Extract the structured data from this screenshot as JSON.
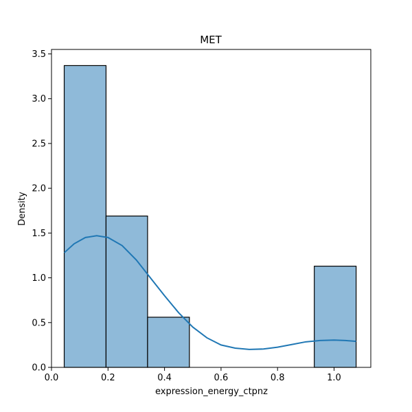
{
  "chart_data": {
    "type": "bar",
    "title": "MET",
    "xlabel": "expression_energy_ctpnz",
    "ylabel": "Density",
    "xlim": [
      0.0,
      1.13
    ],
    "ylim": [
      0.0,
      3.55
    ],
    "xticks": [
      0.0,
      0.2,
      0.4,
      0.6,
      0.8,
      1.0
    ],
    "xtick_labels": [
      "0.0",
      "0.2",
      "0.4",
      "0.6",
      "0.8",
      "1.0"
    ],
    "yticks": [
      0.0,
      0.5,
      1.0,
      1.5,
      2.0,
      2.5,
      3.0,
      3.5
    ],
    "ytick_labels": [
      "0.0",
      "0.5",
      "1.0",
      "1.5",
      "2.0",
      "2.5",
      "3.0",
      "3.5"
    ],
    "bins": [
      {
        "x0": 0.045,
        "x1": 0.193,
        "density": 3.37
      },
      {
        "x0": 0.193,
        "x1": 0.34,
        "density": 1.69
      },
      {
        "x0": 0.34,
        "x1": 0.488,
        "density": 0.56
      },
      {
        "x0": 0.488,
        "x1": 0.635,
        "density": 0.0
      },
      {
        "x0": 0.635,
        "x1": 0.783,
        "density": 0.0
      },
      {
        "x0": 0.783,
        "x1": 0.93,
        "density": 0.0
      },
      {
        "x0": 0.93,
        "x1": 1.078,
        "density": 1.13
      }
    ],
    "kde": {
      "x": [
        0.045,
        0.08,
        0.12,
        0.16,
        0.2,
        0.25,
        0.3,
        0.35,
        0.4,
        0.45,
        0.5,
        0.55,
        0.6,
        0.65,
        0.7,
        0.75,
        0.8,
        0.85,
        0.9,
        0.95,
        1.0,
        1.04,
        1.078
      ],
      "y": [
        1.28,
        1.38,
        1.45,
        1.47,
        1.45,
        1.36,
        1.2,
        1.0,
        0.8,
        0.61,
        0.45,
        0.33,
        0.25,
        0.215,
        0.2,
        0.205,
        0.225,
        0.255,
        0.285,
        0.3,
        0.305,
        0.3,
        0.29
      ]
    },
    "colors": {
      "bar_fill": "#8fbad9",
      "bar_edge": "#000000",
      "kde_line": "#1f77b4"
    },
    "grid": false,
    "legend": "none"
  }
}
